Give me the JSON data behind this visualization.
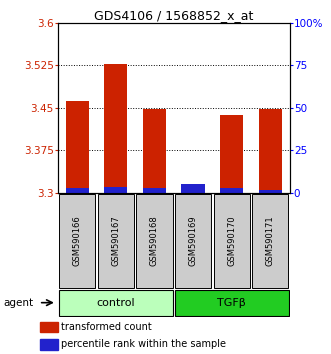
{
  "title": "GDS4106 / 1568852_x_at",
  "samples": [
    "GSM590166",
    "GSM590167",
    "GSM590168",
    "GSM590169",
    "GSM590170",
    "GSM590171"
  ],
  "red_values": [
    3.463,
    3.527,
    3.448,
    3.302,
    3.437,
    3.448
  ],
  "blue_values": [
    3.308,
    3.31,
    3.308,
    3.315,
    3.308,
    3.306
  ],
  "y_min": 3.3,
  "y_max": 3.6,
  "y_ticks": [
    3.3,
    3.375,
    3.45,
    3.525,
    3.6
  ],
  "y_tick_labels": [
    "3.3",
    "3.375",
    "3.45",
    "3.525",
    "3.6"
  ],
  "y2_ticks": [
    0,
    25,
    50,
    75,
    100
  ],
  "y2_tick_labels": [
    "0",
    "25",
    "50",
    "75",
    "100%"
  ],
  "red_color": "#cc2200",
  "blue_color": "#2222cc",
  "group_label_bg_control": "#bbffbb",
  "group_label_bg_tgfb": "#22cc22",
  "sample_bg_color": "#cccccc",
  "bar_width": 0.6,
  "legend_red": "transformed count",
  "legend_blue": "percentile rank within the sample"
}
